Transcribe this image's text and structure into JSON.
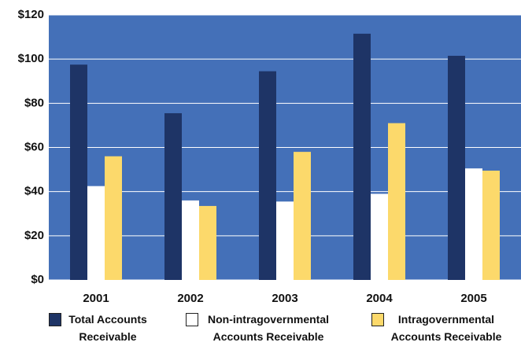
{
  "chart_data": {
    "type": "bar",
    "categories": [
      "2001",
      "2002",
      "2003",
      "2004",
      "2005"
    ],
    "series": [
      {
        "name": "Total Accounts Receivable",
        "color": "#1e3466",
        "values": [
          97.5,
          75.5,
          94.5,
          111.5,
          101.5
        ]
      },
      {
        "name": "Non-intragovernmental Accounts Receivable",
        "color": "#ffffff",
        "values": [
          42.5,
          36,
          35.5,
          39,
          50.5
        ]
      },
      {
        "name": "Intragovernmental Accounts Receivable",
        "color": "#fcd96b",
        "values": [
          56,
          33.5,
          58,
          71,
          49.5
        ]
      }
    ],
    "ylim": [
      0,
      120
    ],
    "yticks": [
      {
        "value": 0,
        "label": "$0"
      },
      {
        "value": 20,
        "label": "$20"
      },
      {
        "value": 40,
        "label": "$40"
      },
      {
        "value": 60,
        "label": "$60"
      },
      {
        "value": 80,
        "label": "$80"
      },
      {
        "value": 100,
        "label": "$100"
      },
      {
        "value": 120,
        "label": "$120"
      }
    ],
    "grid": true,
    "background": "#4470b8"
  }
}
